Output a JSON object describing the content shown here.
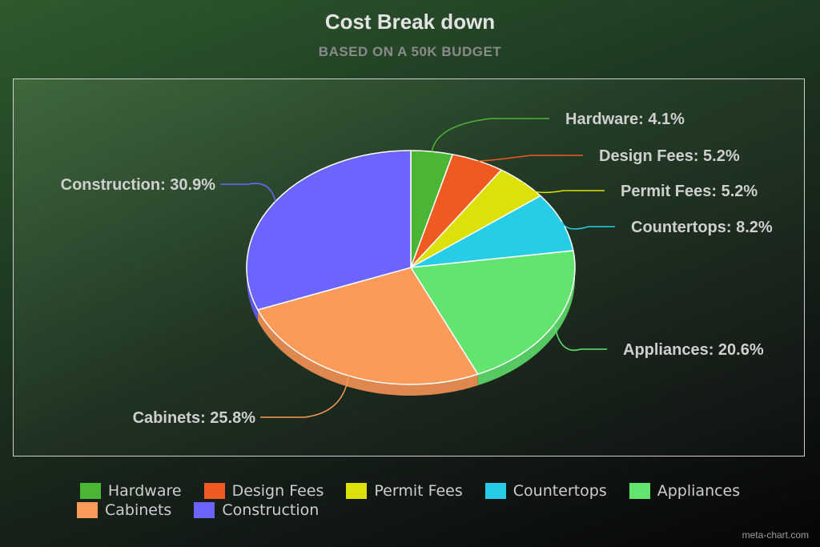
{
  "chart_data": {
    "type": "pie",
    "title": "Cost Break down",
    "subtitle": "BASED ON A 50K BUDGET",
    "slices": [
      {
        "label": "Hardware",
        "value": 4.1,
        "data_label": "Hardware: 4.1%",
        "color": "#4bb535"
      },
      {
        "label": "Design Fees",
        "value": 5.2,
        "data_label": "Design Fees: 5.2%",
        "color": "#ef5a21"
      },
      {
        "label": "Permit Fees",
        "value": 5.2,
        "data_label": "Permit Fees: 5.2%",
        "color": "#dce10a"
      },
      {
        "label": "Countertops",
        "value": 8.2,
        "data_label": "Countertops: 8.2%",
        "color": "#27cde6"
      },
      {
        "label": "Appliances",
        "value": 20.6,
        "data_label": "Appliances: 20.6%",
        "color": "#62e46f"
      },
      {
        "label": "Cabinets",
        "value": 25.8,
        "data_label": "Cabinets: 25.8%",
        "color": "#fc9a5a"
      },
      {
        "label": "Construction",
        "value": 30.9,
        "data_label": "Construction: 30.9%",
        "color": "#6b64ff"
      }
    ],
    "legend_position": "bottom",
    "legend_rows": [
      [
        "Hardware",
        "Design Fees",
        "Permit Fees",
        "Countertops",
        "Appliances"
      ],
      [
        "Cabinets",
        "Construction"
      ]
    ]
  },
  "credit": "meta-chart.com"
}
